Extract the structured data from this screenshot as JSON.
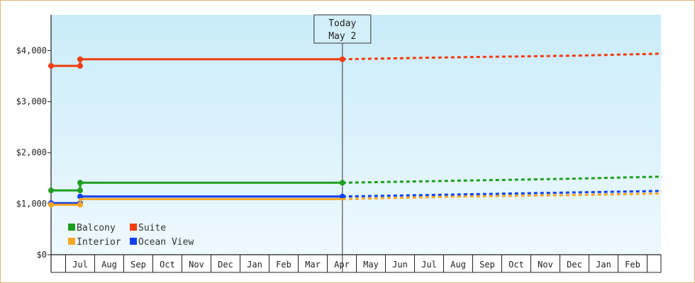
{
  "chart_data": {
    "type": "line",
    "title": "",
    "xlabel": "",
    "ylabel": "",
    "ylim": [
      0,
      4700
    ],
    "yticks": [
      0,
      1000,
      2000,
      3000,
      4000
    ],
    "ytick_labels": [
      "$0",
      "$1,000",
      "$2,000",
      "$3,000",
      "$4,000"
    ],
    "month_labels": [
      "Jul",
      "Aug",
      "Sep",
      "Oct",
      "Nov",
      "Dec",
      "Jan",
      "Feb",
      "Mar",
      "Apr",
      "May",
      "Jun",
      "Jul",
      "Aug",
      "Sep",
      "Oct",
      "Nov",
      "Dec",
      "Jan",
      "Feb"
    ],
    "today_marker": {
      "line1": "Today",
      "line2": "May 2",
      "month_index": 10.02
    },
    "grid": false,
    "legend_position": "bottom-left",
    "series": [
      {
        "name": "Suite",
        "color": "#f03c10",
        "historical": [
          {
            "m": 0,
            "v": 3700
          },
          {
            "m": 1,
            "v": 3700
          },
          {
            "m": 1,
            "v": 3830
          },
          {
            "m": 10.02,
            "v": 3830
          }
        ],
        "markers": [
          {
            "m": 0,
            "v": 3700
          },
          {
            "m": 1,
            "v": 3700
          },
          {
            "m": 1,
            "v": 3830
          },
          {
            "m": 10.02,
            "v": 3830
          }
        ],
        "forecast": [
          {
            "m": 10.02,
            "v": 3830
          },
          {
            "m": 14,
            "v": 3870
          },
          {
            "m": 18,
            "v": 3900
          },
          {
            "m": 21,
            "v": 3940
          }
        ]
      },
      {
        "name": "Balcony",
        "color": "#1e9e1e",
        "historical": [
          {
            "m": 0,
            "v": 1260
          },
          {
            "m": 1,
            "v": 1260
          },
          {
            "m": 1,
            "v": 1410
          },
          {
            "m": 10.02,
            "v": 1410
          }
        ],
        "markers": [
          {
            "m": 0,
            "v": 1260
          },
          {
            "m": 1,
            "v": 1260
          },
          {
            "m": 1,
            "v": 1410
          },
          {
            "m": 10.02,
            "v": 1410
          }
        ],
        "forecast": [
          {
            "m": 10.02,
            "v": 1410
          },
          {
            "m": 14,
            "v": 1450
          },
          {
            "m": 18,
            "v": 1490
          },
          {
            "m": 21,
            "v": 1530
          }
        ]
      },
      {
        "name": "Ocean View",
        "color": "#1040f0",
        "historical": [
          {
            "m": 0,
            "v": 1010
          },
          {
            "m": 1,
            "v": 1010
          },
          {
            "m": 1,
            "v": 1140
          },
          {
            "m": 10.02,
            "v": 1140
          }
        ],
        "markers": [
          {
            "m": 0,
            "v": 1010
          },
          {
            "m": 1,
            "v": 1010
          },
          {
            "m": 1,
            "v": 1140
          },
          {
            "m": 10.02,
            "v": 1140
          }
        ],
        "forecast": [
          {
            "m": 10.02,
            "v": 1140
          },
          {
            "m": 14,
            "v": 1180
          },
          {
            "m": 18,
            "v": 1220
          },
          {
            "m": 21,
            "v": 1250
          }
        ]
      },
      {
        "name": "Interior",
        "color": "#f5a623",
        "historical": [
          {
            "m": 0,
            "v": 980
          },
          {
            "m": 1,
            "v": 980
          },
          {
            "m": 1,
            "v": 1090
          },
          {
            "m": 10.02,
            "v": 1090
          }
        ],
        "markers": [
          {
            "m": 0,
            "v": 980
          },
          {
            "m": 1,
            "v": 980
          }
        ],
        "forecast": [
          {
            "m": 10.02,
            "v": 1090
          },
          {
            "m": 14,
            "v": 1140
          },
          {
            "m": 18,
            "v": 1170
          },
          {
            "m": 21,
            "v": 1200
          }
        ]
      }
    ],
    "legend": [
      {
        "name": "Balcony",
        "color": "#1e9e1e"
      },
      {
        "name": "Suite",
        "color": "#f03c10"
      },
      {
        "name": "Interior",
        "color": "#f5a623"
      },
      {
        "name": "Ocean View",
        "color": "#1040f0"
      }
    ]
  }
}
